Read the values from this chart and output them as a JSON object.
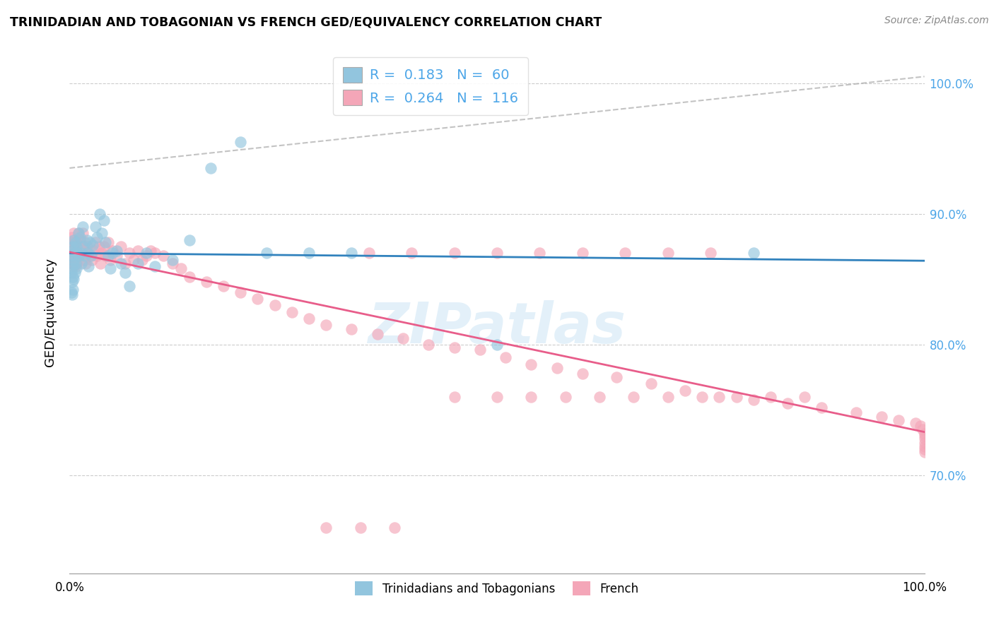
{
  "title": "TRINIDADIAN AND TOBAGONIAN VS FRENCH GED/EQUIVALENCY CORRELATION CHART",
  "source": "Source: ZipAtlas.com",
  "ylabel": "GED/Equivalency",
  "r_blue": 0.183,
  "n_blue": 60,
  "r_pink": 0.264,
  "n_pink": 116,
  "watermark": "ZIPatlas",
  "color_blue": "#92c5de",
  "color_pink": "#f4a6b8",
  "color_blue_line": "#3182bd",
  "color_pink_line": "#e85d8a",
  "color_blue_text": "#4da6e8",
  "color_grey_dash": "#aaaaaa",
  "xlim": [
    0.0,
    1.0
  ],
  "ylim": [
    0.625,
    1.025
  ],
  "ytick_vals": [
    0.7,
    0.8,
    0.9,
    1.0
  ],
  "ytick_labels": [
    "70.0%",
    "80.0%",
    "90.0%",
    "100.0%"
  ],
  "blue_x": [
    0.002,
    0.002,
    0.002,
    0.003,
    0.003,
    0.003,
    0.003,
    0.004,
    0.004,
    0.004,
    0.004,
    0.005,
    0.005,
    0.005,
    0.006,
    0.006,
    0.007,
    0.007,
    0.008,
    0.008,
    0.009,
    0.01,
    0.01,
    0.012,
    0.013,
    0.014,
    0.015,
    0.016,
    0.018,
    0.02,
    0.021,
    0.022,
    0.024,
    0.025,
    0.027,
    0.03,
    0.032,
    0.035,
    0.038,
    0.04,
    0.042,
    0.045,
    0.048,
    0.05,
    0.055,
    0.06,
    0.065,
    0.07,
    0.08,
    0.09,
    0.1,
    0.12,
    0.14,
    0.165,
    0.2,
    0.23,
    0.28,
    0.33,
    0.5,
    0.8
  ],
  "blue_y": [
    0.868,
    0.855,
    0.84,
    0.872,
    0.858,
    0.848,
    0.838,
    0.875,
    0.862,
    0.852,
    0.842,
    0.88,
    0.865,
    0.85,
    0.87,
    0.855,
    0.878,
    0.862,
    0.875,
    0.858,
    0.87,
    0.885,
    0.868,
    0.882,
    0.87,
    0.862,
    0.89,
    0.875,
    0.868,
    0.88,
    0.87,
    0.86,
    0.878,
    0.868,
    0.876,
    0.89,
    0.882,
    0.9,
    0.885,
    0.895,
    0.878,
    0.868,
    0.858,
    0.87,
    0.872,
    0.862,
    0.855,
    0.845,
    0.862,
    0.87,
    0.86,
    0.865,
    0.88,
    0.935,
    0.955,
    0.87,
    0.87,
    0.87,
    0.8,
    0.87
  ],
  "pink_x": [
    0.002,
    0.002,
    0.003,
    0.003,
    0.004,
    0.004,
    0.005,
    0.005,
    0.006,
    0.006,
    0.007,
    0.007,
    0.008,
    0.008,
    0.009,
    0.01,
    0.01,
    0.011,
    0.012,
    0.013,
    0.014,
    0.015,
    0.016,
    0.017,
    0.018,
    0.019,
    0.02,
    0.022,
    0.024,
    0.026,
    0.028,
    0.03,
    0.032,
    0.034,
    0.036,
    0.038,
    0.04,
    0.042,
    0.045,
    0.048,
    0.05,
    0.055,
    0.06,
    0.065,
    0.07,
    0.075,
    0.08,
    0.085,
    0.09,
    0.095,
    0.1,
    0.11,
    0.12,
    0.13,
    0.14,
    0.16,
    0.18,
    0.2,
    0.22,
    0.24,
    0.26,
    0.28,
    0.3,
    0.33,
    0.36,
    0.39,
    0.42,
    0.45,
    0.48,
    0.51,
    0.54,
    0.57,
    0.6,
    0.64,
    0.68,
    0.72,
    0.76,
    0.8,
    0.84,
    0.88,
    0.92,
    0.95,
    0.97,
    0.99,
    0.995,
    0.998,
    1.0,
    1.0,
    1.0,
    1.0,
    1.0,
    1.0,
    1.0,
    0.35,
    0.4,
    0.45,
    0.5,
    0.55,
    0.6,
    0.65,
    0.7,
    0.75,
    0.45,
    0.5,
    0.54,
    0.58,
    0.62,
    0.66,
    0.7,
    0.74,
    0.78,
    0.82,
    0.86,
    0.3,
    0.34,
    0.38
  ],
  "pink_y": [
    0.882,
    0.868,
    0.875,
    0.86,
    0.878,
    0.862,
    0.885,
    0.87,
    0.88,
    0.865,
    0.875,
    0.86,
    0.878,
    0.862,
    0.872,
    0.885,
    0.87,
    0.875,
    0.88,
    0.868,
    0.875,
    0.885,
    0.872,
    0.865,
    0.878,
    0.862,
    0.875,
    0.872,
    0.868,
    0.865,
    0.872,
    0.878,
    0.868,
    0.875,
    0.862,
    0.87,
    0.875,
    0.868,
    0.878,
    0.865,
    0.872,
    0.868,
    0.875,
    0.862,
    0.87,
    0.865,
    0.872,
    0.865,
    0.868,
    0.872,
    0.87,
    0.868,
    0.862,
    0.858,
    0.852,
    0.848,
    0.845,
    0.84,
    0.835,
    0.83,
    0.825,
    0.82,
    0.815,
    0.812,
    0.808,
    0.805,
    0.8,
    0.798,
    0.796,
    0.79,
    0.785,
    0.782,
    0.778,
    0.775,
    0.77,
    0.765,
    0.76,
    0.758,
    0.755,
    0.752,
    0.748,
    0.745,
    0.742,
    0.74,
    0.738,
    0.735,
    0.732,
    0.73,
    0.728,
    0.725,
    0.722,
    0.72,
    0.718,
    0.87,
    0.87,
    0.87,
    0.87,
    0.87,
    0.87,
    0.87,
    0.87,
    0.87,
    0.76,
    0.76,
    0.76,
    0.76,
    0.76,
    0.76,
    0.76,
    0.76,
    0.76,
    0.76,
    0.76,
    0.66,
    0.66,
    0.66
  ]
}
